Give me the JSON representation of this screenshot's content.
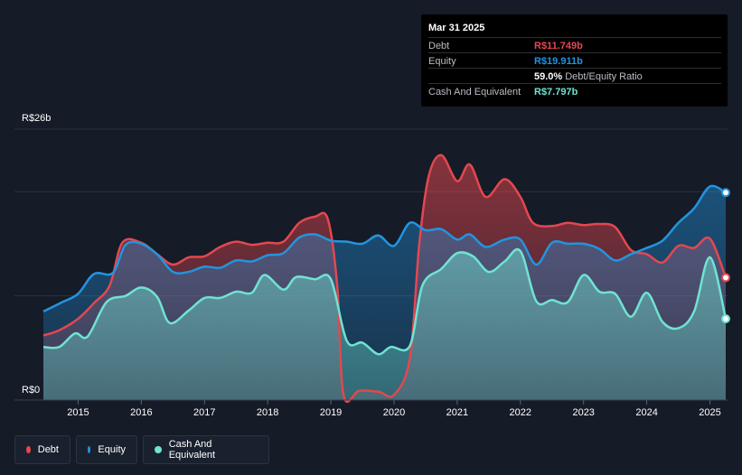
{
  "tooltip": {
    "date": "Mar 31 2025",
    "debt_label": "Debt",
    "debt_value": "R$11.749b",
    "equity_label": "Equity",
    "equity_value": "R$19.911b",
    "ratio_value": "59.0%",
    "ratio_label": "Debt/Equity Ratio",
    "cash_label": "Cash And Equivalent",
    "cash_value": "R$7.797b"
  },
  "legend": {
    "debt": "Debt",
    "equity": "Equity",
    "cash": "Cash And Equivalent"
  },
  "colors": {
    "debt": "#e4474f",
    "equity": "#2394df",
    "cash": "#6fe3d2",
    "background": "#151b27"
  },
  "chart_data": {
    "type": "area",
    "y_top_label": "R$26b",
    "y_bottom_label": "R$0",
    "ylim": [
      0,
      26
    ],
    "xlim": [
      2014.45,
      2025.25
    ],
    "x_ticks": [
      "2015",
      "2016",
      "2017",
      "2018",
      "2019",
      "2020",
      "2021",
      "2022",
      "2023",
      "2024",
      "2025"
    ],
    "grid": true,
    "series": [
      {
        "name": "Debt",
        "points": [
          [
            2014.45,
            6.2
          ],
          [
            2014.7,
            6.7
          ],
          [
            2015.0,
            7.8
          ],
          [
            2015.25,
            9.3
          ],
          [
            2015.5,
            11.0
          ],
          [
            2015.7,
            15.1
          ],
          [
            2016.0,
            15.1
          ],
          [
            2016.25,
            14.0
          ],
          [
            2016.5,
            13.0
          ],
          [
            2016.75,
            13.7
          ],
          [
            2017.0,
            13.8
          ],
          [
            2017.25,
            14.7
          ],
          [
            2017.5,
            15.2
          ],
          [
            2017.75,
            14.9
          ],
          [
            2018.0,
            15.1
          ],
          [
            2018.25,
            15.2
          ],
          [
            2018.5,
            17.0
          ],
          [
            2018.75,
            17.6
          ],
          [
            2018.95,
            17.4
          ],
          [
            2019.1,
            11.0
          ],
          [
            2019.2,
            0.5
          ],
          [
            2019.45,
            0.9
          ],
          [
            2019.75,
            0.8
          ],
          [
            2020.0,
            0.5
          ],
          [
            2020.25,
            4.0
          ],
          [
            2020.4,
            15.0
          ],
          [
            2020.55,
            21.5
          ],
          [
            2020.75,
            23.5
          ],
          [
            2021.0,
            21.0
          ],
          [
            2021.2,
            22.6
          ],
          [
            2021.45,
            19.5
          ],
          [
            2021.75,
            21.2
          ],
          [
            2022.0,
            19.5
          ],
          [
            2022.2,
            17.0
          ],
          [
            2022.5,
            16.7
          ],
          [
            2022.75,
            17.0
          ],
          [
            2023.0,
            16.8
          ],
          [
            2023.25,
            16.9
          ],
          [
            2023.5,
            16.6
          ],
          [
            2023.75,
            14.4
          ],
          [
            2024.0,
            14.0
          ],
          [
            2024.25,
            13.2
          ],
          [
            2024.5,
            14.8
          ],
          [
            2024.75,
            14.6
          ],
          [
            2025.0,
            15.5
          ],
          [
            2025.25,
            11.75
          ]
        ]
      },
      {
        "name": "Equity",
        "points": [
          [
            2014.45,
            8.5
          ],
          [
            2014.75,
            9.4
          ],
          [
            2015.0,
            10.2
          ],
          [
            2015.25,
            12.1
          ],
          [
            2015.55,
            12.2
          ],
          [
            2015.75,
            14.9
          ],
          [
            2016.0,
            15.0
          ],
          [
            2016.25,
            14.0
          ],
          [
            2016.5,
            12.3
          ],
          [
            2016.75,
            12.3
          ],
          [
            2017.0,
            12.8
          ],
          [
            2017.25,
            12.7
          ],
          [
            2017.5,
            13.4
          ],
          [
            2017.75,
            13.3
          ],
          [
            2018.0,
            13.9
          ],
          [
            2018.25,
            14.1
          ],
          [
            2018.5,
            15.6
          ],
          [
            2018.75,
            15.9
          ],
          [
            2019.0,
            15.3
          ],
          [
            2019.25,
            15.2
          ],
          [
            2019.5,
            15.0
          ],
          [
            2019.75,
            15.8
          ],
          [
            2020.0,
            14.8
          ],
          [
            2020.25,
            17.0
          ],
          [
            2020.5,
            16.3
          ],
          [
            2020.75,
            16.4
          ],
          [
            2021.0,
            15.4
          ],
          [
            2021.2,
            15.9
          ],
          [
            2021.45,
            14.7
          ],
          [
            2021.75,
            15.4
          ],
          [
            2022.0,
            15.4
          ],
          [
            2022.25,
            13.0
          ],
          [
            2022.5,
            15.1
          ],
          [
            2022.75,
            15.0
          ],
          [
            2023.0,
            15.0
          ],
          [
            2023.25,
            14.5
          ],
          [
            2023.5,
            13.4
          ],
          [
            2023.75,
            14.0
          ],
          [
            2024.0,
            14.6
          ],
          [
            2024.25,
            15.3
          ],
          [
            2024.5,
            17.0
          ],
          [
            2024.75,
            18.4
          ],
          [
            2025.0,
            20.5
          ],
          [
            2025.25,
            19.91
          ]
        ]
      },
      {
        "name": "Cash And Equivalent",
        "points": [
          [
            2014.45,
            5.1
          ],
          [
            2014.7,
            5.1
          ],
          [
            2014.95,
            6.4
          ],
          [
            2015.15,
            6.1
          ],
          [
            2015.45,
            9.4
          ],
          [
            2015.75,
            10.0
          ],
          [
            2016.0,
            10.8
          ],
          [
            2016.25,
            9.9
          ],
          [
            2016.45,
            7.4
          ],
          [
            2016.75,
            8.6
          ],
          [
            2017.0,
            9.8
          ],
          [
            2017.25,
            9.8
          ],
          [
            2017.5,
            10.4
          ],
          [
            2017.75,
            10.3
          ],
          [
            2017.95,
            12.0
          ],
          [
            2018.25,
            10.6
          ],
          [
            2018.45,
            11.8
          ],
          [
            2018.75,
            11.6
          ],
          [
            2019.0,
            11.6
          ],
          [
            2019.25,
            5.7
          ],
          [
            2019.5,
            5.5
          ],
          [
            2019.75,
            4.4
          ],
          [
            2019.95,
            5.1
          ],
          [
            2020.25,
            5.2
          ],
          [
            2020.45,
            11.0
          ],
          [
            2020.75,
            12.6
          ],
          [
            2021.0,
            14.1
          ],
          [
            2021.25,
            13.8
          ],
          [
            2021.5,
            12.3
          ],
          [
            2021.75,
            13.3
          ],
          [
            2022.0,
            14.3
          ],
          [
            2022.25,
            9.5
          ],
          [
            2022.5,
            9.6
          ],
          [
            2022.75,
            9.4
          ],
          [
            2023.0,
            12.0
          ],
          [
            2023.25,
            10.4
          ],
          [
            2023.5,
            10.2
          ],
          [
            2023.75,
            8.0
          ],
          [
            2024.0,
            10.3
          ],
          [
            2024.25,
            7.5
          ],
          [
            2024.5,
            6.9
          ],
          [
            2024.75,
            8.5
          ],
          [
            2025.0,
            13.7
          ],
          [
            2025.25,
            7.8
          ]
        ]
      }
    ]
  }
}
